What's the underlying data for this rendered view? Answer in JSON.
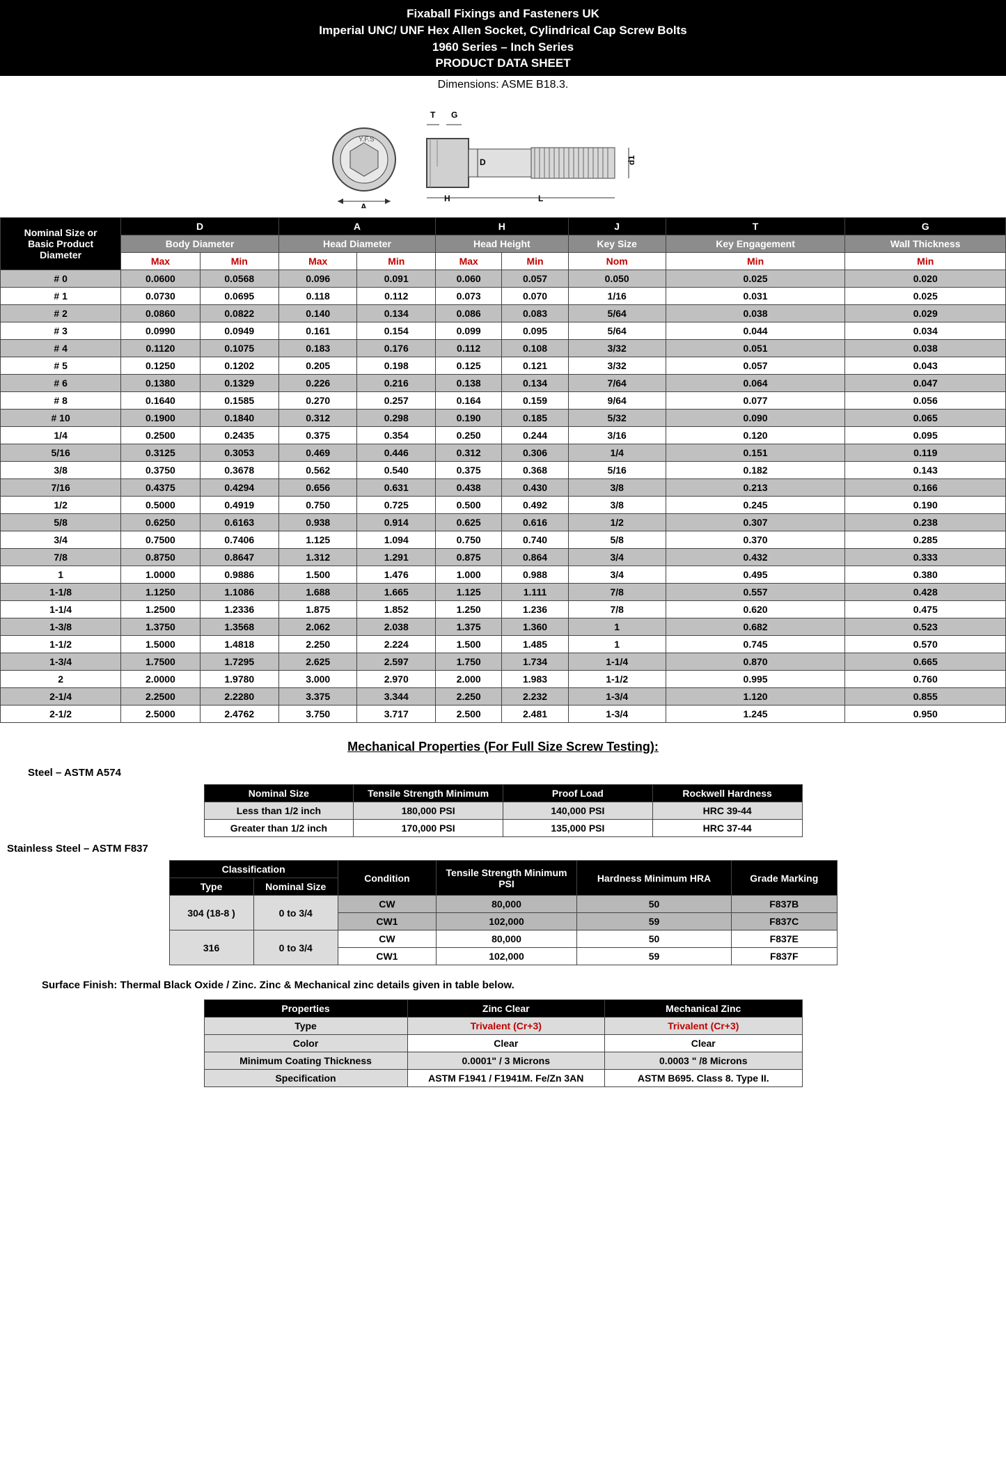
{
  "header": {
    "line1": "Fixaball Fixings and Fasteners UK",
    "line2": "Imperial UNC/ UNF Hex Allen Socket, Cylindrical Cap Screw Bolts",
    "line3": "1960 Series – Inch Series",
    "line4": "PRODUCT DATA SHEET"
  },
  "dims_line": "Dimensions: ASME B18.3.",
  "main_cols": {
    "left_top": "Nominal Size or",
    "left_mid": "Basic Product",
    "left_bot": "Diameter",
    "D": "D",
    "A": "A",
    "H": "H",
    "J": "J",
    "T": "T",
    "G": "G",
    "body": "Body Diameter",
    "head": "Head Diameter",
    "height": "Head Height",
    "key": "Key Size",
    "keng": "Key Engagement",
    "wall": "Wall Thickness",
    "max": "Max",
    "min": "Min",
    "nom": "Nom"
  },
  "main_rows": [
    {
      "n": "# 0",
      "bd_max": "0.0600",
      "bd_min": "0.0568",
      "hd_max": "0.096",
      "hd_min": "0.091",
      "hh_max": "0.060",
      "hh_min": "0.057",
      "key": "0.050",
      "keng": "0.025",
      "wall": "0.020"
    },
    {
      "n": "# 1",
      "bd_max": "0.0730",
      "bd_min": "0.0695",
      "hd_max": "0.118",
      "hd_min": "0.112",
      "hh_max": "0.073",
      "hh_min": "0.070",
      "key": "1/16",
      "keng": "0.031",
      "wall": "0.025"
    },
    {
      "n": "# 2",
      "bd_max": "0.0860",
      "bd_min": "0.0822",
      "hd_max": "0.140",
      "hd_min": "0.134",
      "hh_max": "0.086",
      "hh_min": "0.083",
      "key": "5/64",
      "keng": "0.038",
      "wall": "0.029"
    },
    {
      "n": "# 3",
      "bd_max": "0.0990",
      "bd_min": "0.0949",
      "hd_max": "0.161",
      "hd_min": "0.154",
      "hh_max": "0.099",
      "hh_min": "0.095",
      "key": "5/64",
      "keng": "0.044",
      "wall": "0.034"
    },
    {
      "n": "# 4",
      "bd_max": "0.1120",
      "bd_min": "0.1075",
      "hd_max": "0.183",
      "hd_min": "0.176",
      "hh_max": "0.112",
      "hh_min": "0.108",
      "key": "3/32",
      "keng": "0.051",
      "wall": "0.038"
    },
    {
      "n": "# 5",
      "bd_max": "0.1250",
      "bd_min": "0.1202",
      "hd_max": "0.205",
      "hd_min": "0.198",
      "hh_max": "0.125",
      "hh_min": "0.121",
      "key": "3/32",
      "keng": "0.057",
      "wall": "0.043"
    },
    {
      "n": "# 6",
      "bd_max": "0.1380",
      "bd_min": "0.1329",
      "hd_max": "0.226",
      "hd_min": "0.216",
      "hh_max": "0.138",
      "hh_min": "0.134",
      "key": "7/64",
      "keng": "0.064",
      "wall": "0.047"
    },
    {
      "n": "# 8",
      "bd_max": "0.1640",
      "bd_min": "0.1585",
      "hd_max": "0.270",
      "hd_min": "0.257",
      "hh_max": "0.164",
      "hh_min": "0.159",
      "key": "9/64",
      "keng": "0.077",
      "wall": "0.056"
    },
    {
      "n": "# 10",
      "bd_max": "0.1900",
      "bd_min": "0.1840",
      "hd_max": "0.312",
      "hd_min": "0.298",
      "hh_max": "0.190",
      "hh_min": "0.185",
      "key": "5/32",
      "keng": "0.090",
      "wall": "0.065"
    },
    {
      "n": "1/4",
      "bd_max": "0.2500",
      "bd_min": "0.2435",
      "hd_max": "0.375",
      "hd_min": "0.354",
      "hh_max": "0.250",
      "hh_min": "0.244",
      "key": "3/16",
      "keng": "0.120",
      "wall": "0.095"
    },
    {
      "n": "5/16",
      "bd_max": "0.3125",
      "bd_min": "0.3053",
      "hd_max": "0.469",
      "hd_min": "0.446",
      "hh_max": "0.312",
      "hh_min": "0.306",
      "key": "1/4",
      "keng": "0.151",
      "wall": "0.119"
    },
    {
      "n": "3/8",
      "bd_max": "0.3750",
      "bd_min": "0.3678",
      "hd_max": "0.562",
      "hd_min": "0.540",
      "hh_max": "0.375",
      "hh_min": "0.368",
      "key": "5/16",
      "keng": "0.182",
      "wall": "0.143"
    },
    {
      "n": "7/16",
      "bd_max": "0.4375",
      "bd_min": "0.4294",
      "hd_max": "0.656",
      "hd_min": "0.631",
      "hh_max": "0.438",
      "hh_min": "0.430",
      "key": "3/8",
      "keng": "0.213",
      "wall": "0.166"
    },
    {
      "n": "1/2",
      "bd_max": "0.5000",
      "bd_min": "0.4919",
      "hd_max": "0.750",
      "hd_min": "0.725",
      "hh_max": "0.500",
      "hh_min": "0.492",
      "key": "3/8",
      "keng": "0.245",
      "wall": "0.190"
    },
    {
      "n": "5/8",
      "bd_max": "0.6250",
      "bd_min": "0.6163",
      "hd_max": "0.938",
      "hd_min": "0.914",
      "hh_max": "0.625",
      "hh_min": "0.616",
      "key": "1/2",
      "keng": "0.307",
      "wall": "0.238"
    },
    {
      "n": "3/4",
      "bd_max": "0.7500",
      "bd_min": "0.7406",
      "hd_max": "1.125",
      "hd_min": "1.094",
      "hh_max": "0.750",
      "hh_min": "0.740",
      "key": "5/8",
      "keng": "0.370",
      "wall": "0.285"
    },
    {
      "n": "7/8",
      "bd_max": "0.8750",
      "bd_min": "0.8647",
      "hd_max": "1.312",
      "hd_min": "1.291",
      "hh_max": "0.875",
      "hh_min": "0.864",
      "key": "3/4",
      "keng": "0.432",
      "wall": "0.333"
    },
    {
      "n": "1",
      "bd_max": "1.0000",
      "bd_min": "0.9886",
      "hd_max": "1.500",
      "hd_min": "1.476",
      "hh_max": "1.000",
      "hh_min": "0.988",
      "key": "3/4",
      "keng": "0.495",
      "wall": "0.380"
    },
    {
      "n": "1-1/8",
      "bd_max": "1.1250",
      "bd_min": "1.1086",
      "hd_max": "1.688",
      "hd_min": "1.665",
      "hh_max": "1.125",
      "hh_min": "1.111",
      "key": "7/8",
      "keng": "0.557",
      "wall": "0.428"
    },
    {
      "n": "1-1/4",
      "bd_max": "1.2500",
      "bd_min": "1.2336",
      "hd_max": "1.875",
      "hd_min": "1.852",
      "hh_max": "1.250",
      "hh_min": "1.236",
      "key": "7/8",
      "keng": "0.620",
      "wall": "0.475"
    },
    {
      "n": "1-3/8",
      "bd_max": "1.3750",
      "bd_min": "1.3568",
      "hd_max": "2.062",
      "hd_min": "2.038",
      "hh_max": "1.375",
      "hh_min": "1.360",
      "key": "1",
      "keng": "0.682",
      "wall": "0.523"
    },
    {
      "n": "1-1/2",
      "bd_max": "1.5000",
      "bd_min": "1.4818",
      "hd_max": "2.250",
      "hd_min": "2.224",
      "hh_max": "1.500",
      "hh_min": "1.485",
      "key": "1",
      "keng": "0.745",
      "wall": "0.570"
    },
    {
      "n": "1-3/4",
      "bd_max": "1.7500",
      "bd_min": "1.7295",
      "hd_max": "2.625",
      "hd_min": "2.597",
      "hh_max": "1.750",
      "hh_min": "1.734",
      "key": "1-1/4",
      "keng": "0.870",
      "wall": "0.665"
    },
    {
      "n": "2",
      "bd_max": "2.0000",
      "bd_min": "1.9780",
      "hd_max": "3.000",
      "hd_min": "2.970",
      "hh_max": "2.000",
      "hh_min": "1.983",
      "key": "1-1/2",
      "keng": "0.995",
      "wall": "0.760"
    },
    {
      "n": "2-1/4",
      "bd_max": "2.2500",
      "bd_min": "2.2280",
      "hd_max": "3.375",
      "hd_min": "3.344",
      "hh_max": "2.250",
      "hh_min": "2.232",
      "key": "1-3/4",
      "keng": "1.120",
      "wall": "0.855"
    },
    {
      "n": "2-1/2",
      "bd_max": "2.5000",
      "bd_min": "2.4762",
      "hd_max": "3.750",
      "hd_min": "3.717",
      "hh_max": "2.500",
      "hh_min": "2.481",
      "key": "1-3/4",
      "keng": "1.245",
      "wall": "0.950"
    }
  ],
  "mech_title": "Mechanical Properties (For Full Size Screw Testing):",
  "steel_label": "Steel – ASTM A574",
  "steel_cols": [
    "Nominal Size",
    "Tensile Strength Minimum",
    "Proof Load",
    "Rockwell Hardness"
  ],
  "steel_rows": [
    [
      "Less than 1/2 inch",
      "180,000 PSI",
      "140,000 PSI",
      "HRC 39-44"
    ],
    [
      "Greater than 1/2 inch",
      "170,000 PSI",
      "135,000 PSI",
      "HRC 37-44"
    ]
  ],
  "ss_label": "Stainless Steel – ASTM F837",
  "ss_cols": {
    "class": "Classification",
    "type": "Type",
    "nom": "Nominal Size",
    "cond": "Condition",
    "tens": "Tensile Strength Minimum PSI",
    "hard": "Hardness Minimum HRA",
    "grade": "Grade Marking"
  },
  "ss_rows": [
    {
      "type": "304 (18-8 )",
      "nom": "0  to  3/4",
      "cond": "CW",
      "tens": "80,000",
      "hard": "50",
      "grade": "F837B"
    },
    {
      "type": "",
      "nom": "",
      "cond": "CW1",
      "tens": "102,000",
      "hard": "59",
      "grade": "F837C"
    },
    {
      "type": "316",
      "nom": "0 to 3/4",
      "cond": "CW",
      "tens": "80,000",
      "hard": "50",
      "grade": "F837E"
    },
    {
      "type": "",
      "nom": "",
      "cond": "CW1",
      "tens": "102,000",
      "hard": "59",
      "grade": "F837F"
    }
  ],
  "surface_note": "Surface Finish: Thermal Black Oxide / Zinc. Zinc & Mechanical zinc details given in table below.",
  "finish_cols": [
    "Properties",
    "Zinc  Clear",
    "Mechanical Zinc"
  ],
  "finish_rows": [
    {
      "p": "Type",
      "a": "Trivalent (Cr+3)",
      "b": "Trivalent (Cr+3)",
      "red": true
    },
    {
      "p": "Color",
      "a": "Clear",
      "b": "Clear"
    },
    {
      "p": "Minimum Coating Thickness",
      "a": "0.0001\" / 3 Microns",
      "b": "0.0003 \" /8 Microns"
    },
    {
      "p": "Specification",
      "a": "ASTM F1941 / F1941M. Fe/Zn 3AN",
      "b": "ASTM B695. Class 8. Type II."
    }
  ]
}
